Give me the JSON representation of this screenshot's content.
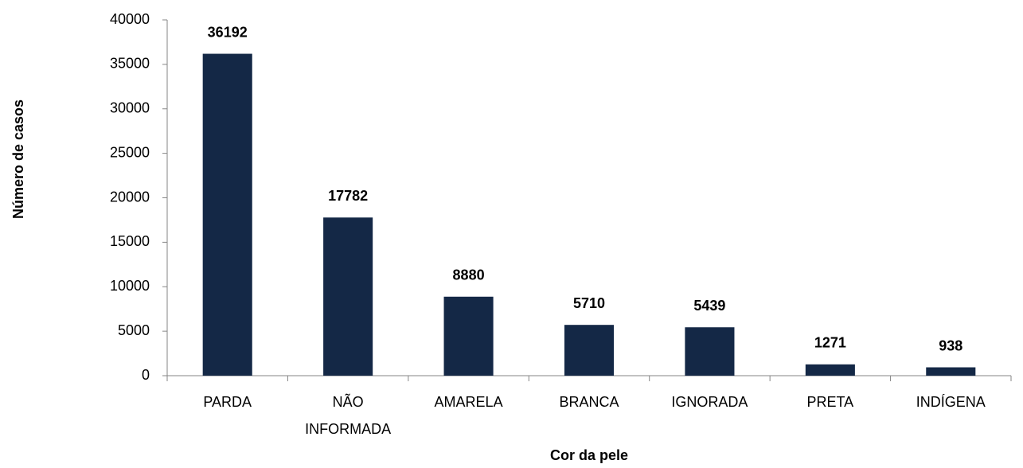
{
  "chart_data": {
    "type": "bar",
    "categories": [
      "PARDA",
      "NÃO INFORMADA",
      "AMARELA",
      "BRANCA",
      "IGNORADA",
      "PRETA",
      "INDÍGENA"
    ],
    "values": [
      36192,
      17782,
      8880,
      5710,
      5439,
      1271,
      938
    ],
    "color": "#142846",
    "ylim": [
      0,
      40000
    ],
    "yticks": [
      0,
      5000,
      10000,
      15000,
      20000,
      25000,
      30000,
      35000,
      40000
    ],
    "grid": false,
    "x_label": "Cor da pele",
    "y_label": "Número de casos"
  }
}
